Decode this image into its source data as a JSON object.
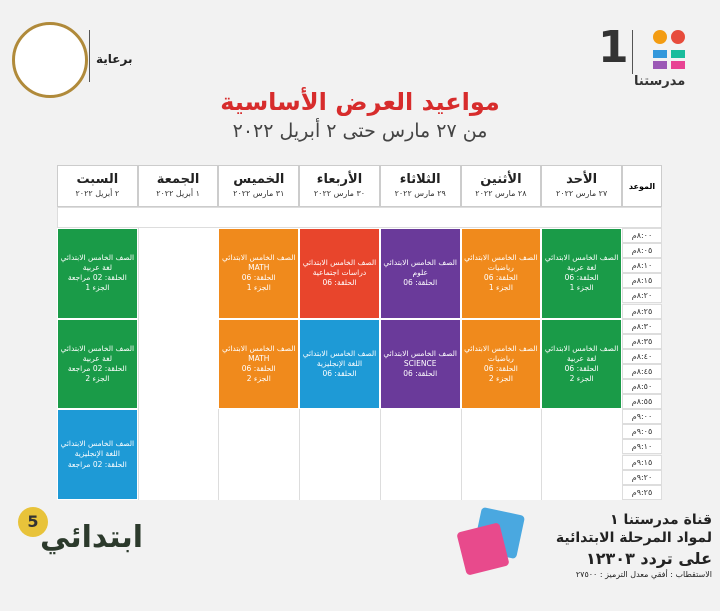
{
  "header": {
    "sponsor": "برعاية",
    "logo_number": "1",
    "logo_text": "مدرستنا",
    "title": "مواعيد العرض الأساسية",
    "subtitle": "من ٢٧ مارس حتى ٢ أبريل ٢٠٢٢"
  },
  "table": {
    "time_header": "الموعد",
    "times": [
      "٨:٠٠م",
      "٨:٠٥م",
      "٨:١٠م",
      "٨:١٥م",
      "٨:٢٠م",
      "٨:٢٥م",
      "٨:٣٠م",
      "٨:٣٥م",
      "٨:٤٠م",
      "٨:٤٥م",
      "٨:٥٠م",
      "٨:٥٥م",
      "٩:٠٠م",
      "٩:٠٥م",
      "٩:١٠م",
      "٩:١٥م",
      "٩:٢٠م",
      "٩:٢٥م"
    ],
    "days": [
      {
        "name": "الأحد",
        "date": "٢٧ مارس ٢٠٢٢",
        "sessions": [
          {
            "color": "#1a9b48",
            "lines": [
              "الصف الخامس الابتدائي",
              "لغة عربية",
              "الحلقة: 06",
              "الجزء 1"
            ]
          },
          {
            "color": "#1a9b48",
            "lines": [
              "الصف الخامس الابتدائي",
              "لغة عربية",
              "الحلقة: 06",
              "الجزء 2"
            ]
          }
        ]
      },
      {
        "name": "الأثنين",
        "date": "٢٨ مارس ٢٠٢٢",
        "sessions": [
          {
            "color": "#f08a1c",
            "lines": [
              "الصف الخامس الابتدائي",
              "رياضيات",
              "الحلقة: 06",
              "الجزء 1"
            ]
          },
          {
            "color": "#f08a1c",
            "lines": [
              "الصف الخامس الابتدائي",
              "رياضيات",
              "الحلقة: 06",
              "الجزء 2"
            ]
          }
        ]
      },
      {
        "name": "الثلاثاء",
        "date": "٢٩ مارس ٢٠٢٢",
        "sessions": [
          {
            "color": "#6a3a9a",
            "lines": [
              "الصف الخامس الابتدائي",
              "علوم",
              "الحلقة: 06"
            ]
          },
          {
            "color": "#6a3a9a",
            "lines": [
              "الصف الخامس الابتدائي",
              "SCIENCE",
              "الحلقة: 06"
            ]
          }
        ]
      },
      {
        "name": "الأربعاء",
        "date": "٣٠ مارس ٢٠٢٢",
        "sessions": [
          {
            "color": "#e8452c",
            "lines": [
              "الصف الخامس الابتدائي",
              "دراسات اجتماعية",
              "الحلقة: 06"
            ]
          },
          {
            "color": "#1e9ad6",
            "lines": [
              "الصف الخامس الابتدائي",
              "اللغة الإنجليزية",
              "الحلقة: 06"
            ]
          }
        ]
      },
      {
        "name": "الخميس",
        "date": "٣١ مارس ٢٠٢٢",
        "sessions": [
          {
            "color": "#f08a1c",
            "lines": [
              "الصف الخامس الابتدائي",
              "MATH",
              "الحلقة: 06",
              "الجزء 1"
            ]
          },
          {
            "color": "#f08a1c",
            "lines": [
              "الصف الخامس الابتدائي",
              "MATH",
              "الحلقة: 06",
              "الجزء 2"
            ]
          }
        ]
      },
      {
        "name": "الجمعة",
        "date": "١ أبريل ٢٠٢٢",
        "sessions": []
      },
      {
        "name": "السبت",
        "date": "٢ أبريل ٢٠٢٢",
        "sessions": [
          {
            "color": "#1a9b48",
            "lines": [
              "الصف الخامس الابتدائي",
              "لغة عربية",
              "الحلقة: 02 مراجعة",
              "الجزء 1"
            ]
          },
          {
            "color": "#1a9b48",
            "lines": [
              "الصف الخامس الابتدائي",
              "لغة عربية",
              "الحلقة: 02 مراجعة",
              "الجزء 2"
            ]
          },
          {
            "color": "#1e9ad6",
            "lines": [
              "الصف الخامس الابتدائي",
              "اللغة الإنجليزية",
              "الحلقة: 02 مراجعة"
            ]
          }
        ]
      }
    ]
  },
  "footer": {
    "grade_label": "ابتدائي",
    "grade_number": "5",
    "channel": "قناة مدرستنا ١",
    "subjects": "لمواد المرحلة الابتدائية",
    "frequency": "على تردد ١٢٣٠٣",
    "details": "الاستقطاب : أفقي معدل الترميز : ٢٧٥٠٠"
  }
}
